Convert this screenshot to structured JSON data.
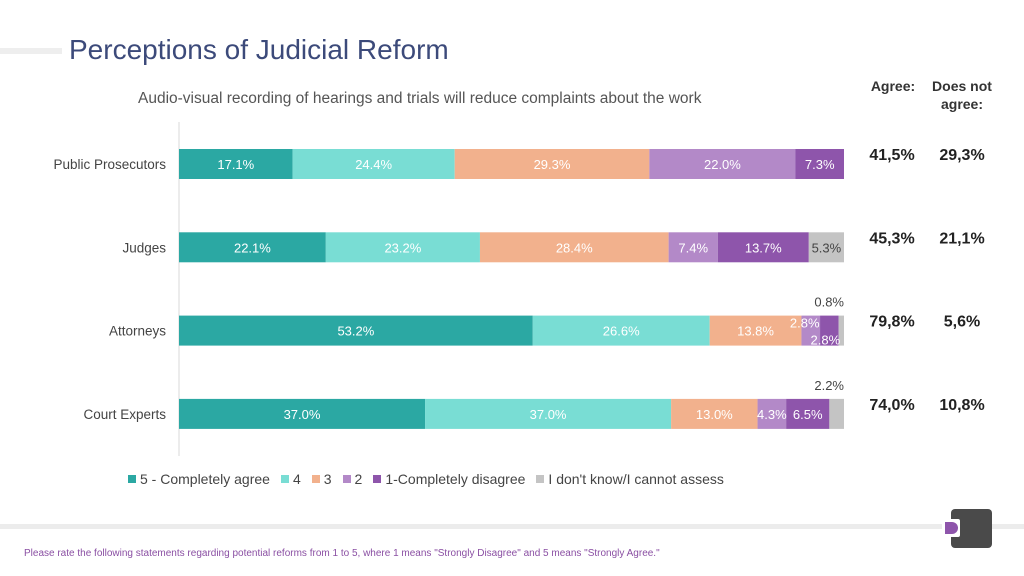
{
  "title": "Perceptions of Judicial Reform",
  "columns": {
    "agree": "Agree:",
    "not_agree_1": "Does not",
    "not_agree_2": "agree:"
  },
  "footnote": "Please rate the following statements regarding potential reforms from 1 to 5, where 1 means \"Strongly Disagree\" and 5 means \"Strongly Agree.\"",
  "logo": {
    "icon": "brand-logo-icon"
  },
  "chart_data": {
    "type": "bar",
    "orientation": "horizontal-stacked-100",
    "title": "Audio-visual recording of hearings and trials will reduce complaints about the work",
    "categories": [
      "Public Prosecutors",
      "Judges",
      "Attorneys",
      "Court Experts"
    ],
    "series": [
      {
        "name": "5 - Completely agree",
        "color": "#2ba8a3",
        "text_color": "#ffffff",
        "values": [
          17.1,
          22.1,
          53.2,
          37.0
        ],
        "labels": [
          "17.1%",
          "22.1%",
          "53.2%",
          "37.0%"
        ]
      },
      {
        "name": "4",
        "color": "#79ddd4",
        "text_color": "#ffffff",
        "values": [
          24.4,
          23.2,
          26.6,
          37.0
        ],
        "labels": [
          "24.4%",
          "23.2%",
          "26.6%",
          "37.0%"
        ]
      },
      {
        "name": "3",
        "color": "#f2b18d",
        "text_color": "#ffffff",
        "values": [
          29.3,
          28.4,
          13.8,
          13.0
        ],
        "labels": [
          "29.3%",
          "28.4%",
          "13.8%",
          "13.0%"
        ]
      },
      {
        "name": "2",
        "color": "#b389c8",
        "text_color": "#ffffff",
        "values": [
          22.0,
          7.4,
          2.8,
          4.3
        ],
        "labels": [
          "22.0%",
          "7.4%",
          "2.8%",
          "4.3%"
        ]
      },
      {
        "name": "1-Completely disagree",
        "color": "#8e55ab",
        "text_color": "#ffffff",
        "values": [
          7.3,
          13.7,
          2.8,
          6.5
        ],
        "labels": [
          "7.3%",
          "13.7%",
          "2.8%",
          "6.5%"
        ]
      },
      {
        "name": "I don't know/I cannot assess",
        "color": "#c4c4c4",
        "text_color": "#444444",
        "values": [
          0,
          5.3,
          0.8,
          2.2
        ],
        "labels": [
          "",
          "5.3%",
          "0.8%",
          "2.2%"
        ]
      }
    ],
    "agree": [
      "41,5%",
      "45,3%",
      "79,8%",
      "74,0%"
    ],
    "does_not_agree": [
      "29,3%",
      "21,1%",
      "5,6%",
      "10,8%"
    ],
    "xlim": [
      0,
      100
    ],
    "legend": "bottom",
    "grid": false
  }
}
